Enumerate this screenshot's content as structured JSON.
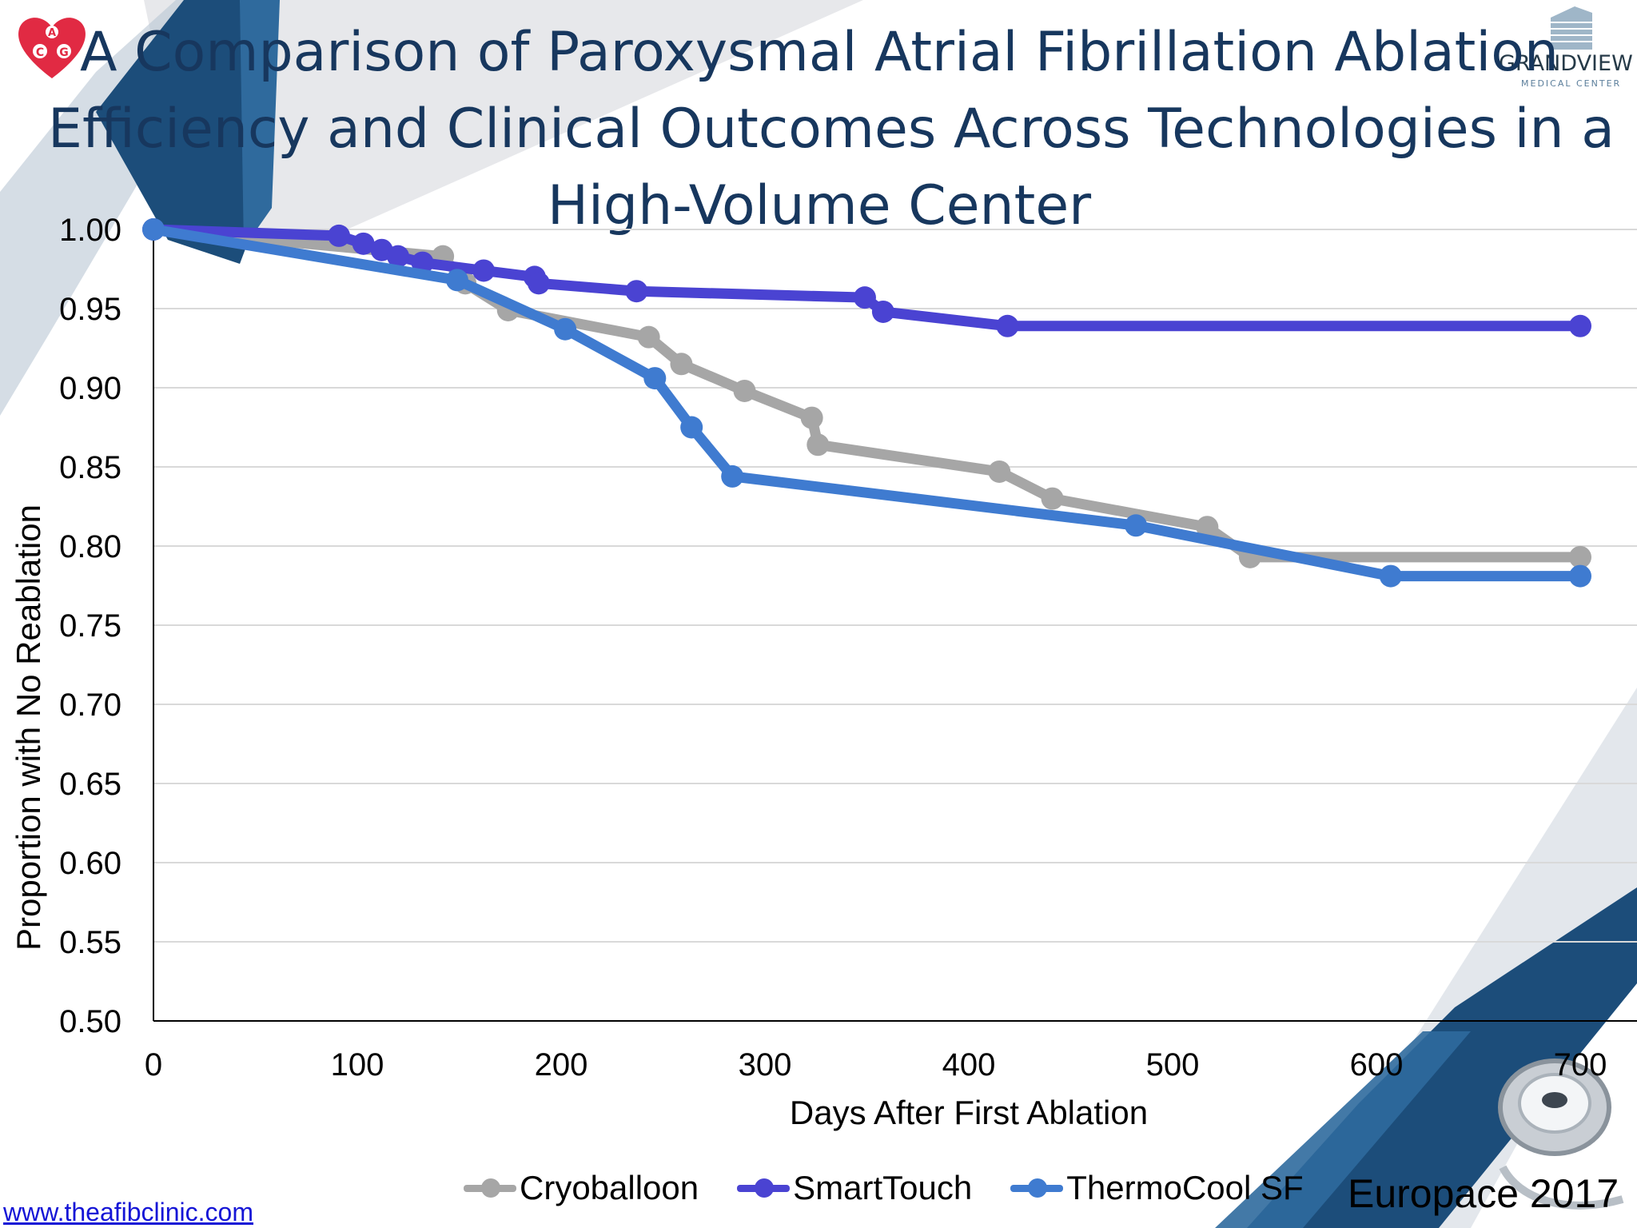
{
  "title": {
    "line1": "A Comparison of Paroxysmal Atrial Fibrillation Ablation",
    "line2": "Efficiency and Clinical Outcomes Across Technologies in a",
    "line3": "High-Volume Center"
  },
  "logo_right": {
    "name": "GRANDVIEW",
    "sub": "MEDICAL CENTER"
  },
  "source": "Europace 2017",
  "footer_link": "www.theafibclinic.com",
  "colors": {
    "cryoballoon": "#a6a6a6",
    "smarttouch": "#4a43d2",
    "thermocool": "#3f7bd0",
    "title": "#17375e",
    "accent_dark": "#1c4d7a",
    "accent_logo": "#e12a43"
  },
  "icons": {
    "logo_left": "heart-logo-icon",
    "logo_right": "building-logo-icon",
    "corner": "stethoscope-icon"
  },
  "chart_data": {
    "type": "line",
    "title": "",
    "xlabel": "Days After First Ablation",
    "ylabel": "Proportion with No Reablation",
    "xlim": [
      0,
      700
    ],
    "ylim": [
      0.5,
      1.0
    ],
    "xticks": [
      "0",
      "100",
      "200",
      "300",
      "400",
      "500",
      "600",
      "700"
    ],
    "yticks": [
      "0.50",
      "0.55",
      "0.60",
      "0.65",
      "0.70",
      "0.75",
      "0.80",
      "0.85",
      "0.90",
      "0.95",
      "1.00"
    ],
    "grid": "horizontal",
    "legend_position": "bottom",
    "series": [
      {
        "name": "Cryoballoon",
        "points": [
          [
            0,
            1.0
          ],
          [
            142,
            0.983
          ],
          [
            153,
            0.966
          ],
          [
            174,
            0.949
          ],
          [
            243,
            0.932
          ],
          [
            259,
            0.915
          ],
          [
            290,
            0.898
          ],
          [
            323,
            0.881
          ],
          [
            326,
            0.864
          ],
          [
            415,
            0.847
          ],
          [
            441,
            0.83
          ],
          [
            517,
            0.812
          ],
          [
            538,
            0.793
          ],
          [
            700,
            0.793
          ]
        ]
      },
      {
        "name": "SmartTouch",
        "points": [
          [
            0,
            1.0
          ],
          [
            91,
            0.996
          ],
          [
            103,
            0.991
          ],
          [
            112,
            0.987
          ],
          [
            120,
            0.983
          ],
          [
            132,
            0.979
          ],
          [
            162,
            0.974
          ],
          [
            187,
            0.97
          ],
          [
            189,
            0.966
          ],
          [
            237,
            0.961
          ],
          [
            349,
            0.957
          ],
          [
            358,
            0.948
          ],
          [
            419,
            0.939
          ],
          [
            700,
            0.939
          ]
        ]
      },
      {
        "name": "ThermoCool SF",
        "points": [
          [
            0,
            1.0
          ],
          [
            149,
            0.968
          ],
          [
            202,
            0.937
          ],
          [
            246,
            0.906
          ],
          [
            264,
            0.875
          ],
          [
            284,
            0.844
          ],
          [
            482,
            0.813
          ],
          [
            607,
            0.781
          ],
          [
            700,
            0.781
          ]
        ]
      }
    ]
  }
}
